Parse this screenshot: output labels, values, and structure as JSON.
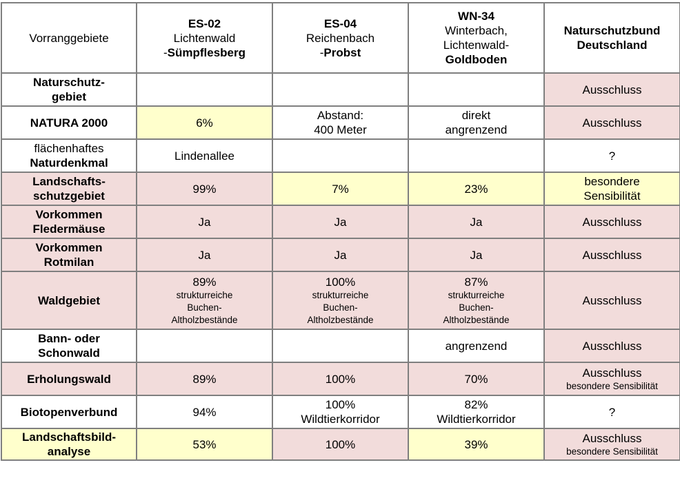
{
  "header": {
    "first": "Vorranggebiete",
    "es02": {
      "code": "ES-02",
      "line2": "Lichtenwald",
      "line3_prefix": "-",
      "line3_bold": "Sümpflesberg"
    },
    "es04": {
      "code": "ES-04",
      "line2": "Reichenbach",
      "line3_prefix": "-",
      "line3_bold": "Probst"
    },
    "wn34": {
      "code": "WN-34",
      "line2": "Winterbach,",
      "line3": "Lichtenwald-",
      "line4_bold": "Goldboden"
    },
    "nabu": {
      "line1": "Naturschutzbund",
      "line2": "Deutschland"
    }
  },
  "rows": {
    "naturschutzgebiet": {
      "label1": "Naturschutz-",
      "label2": "gebiet",
      "es02": "",
      "es04": "",
      "wn34": "",
      "nabu": "Ausschluss"
    },
    "natura2000": {
      "label": "NATURA 2000",
      "es02": "6%",
      "es04_1": "Abstand:",
      "es04_2": "400 Meter",
      "wn34_1": "direkt",
      "wn34_2": "angrenzend",
      "nabu": "Ausschluss"
    },
    "naturdenkmal": {
      "label1": "flächenhaftes",
      "label2": "Naturdenkmal",
      "es02": "Lindenallee",
      "es04": "",
      "wn34": "",
      "nabu": "?"
    },
    "landschaftsschutz": {
      "label1": "Landschafts-",
      "label2": "schutzgebiet",
      "es02": "99%",
      "es04": "7%",
      "wn34": "23%",
      "nabu1": "besondere",
      "nabu2": "Sensibilität"
    },
    "fledermaeuse": {
      "label1": "Vorkommen",
      "label2": "Fledermäuse",
      "es02": "Ja",
      "es04": "Ja",
      "wn34": "Ja",
      "nabu": "Ausschluss"
    },
    "rotmilan": {
      "label1": "Vorkommen",
      "label2": "Rotmilan",
      "es02": "Ja",
      "es04": "Ja",
      "wn34": "Ja",
      "nabu": "Ausschluss"
    },
    "waldgebiet": {
      "label": "Waldgebiet",
      "es02": {
        "pct": "89%",
        "d1": "strukturreiche",
        "d2": "Buchen-",
        "d3": "Altholzbestände"
      },
      "es04": {
        "pct": "100%",
        "d1": "strukturreiche",
        "d2": "Buchen-",
        "d3": "Altholzbestände"
      },
      "wn34": {
        "pct": "87%",
        "d1": "strukturreiche",
        "d2": "Buchen-",
        "d3": "Altholzbestände"
      },
      "nabu": "Ausschluss"
    },
    "bannwald": {
      "label1": "Bann- oder",
      "label2": "Schonwald",
      "es02": "",
      "es04": "",
      "wn34": "angrenzend",
      "nabu": "Ausschluss"
    },
    "erholungswald": {
      "label": "Erholungswald",
      "es02": "89%",
      "es04": "100%",
      "wn34": "70%",
      "nabu1": "Ausschluss",
      "nabu2": "besondere Sensibilität"
    },
    "biotopenverbund": {
      "label": "Biotopenverbund",
      "es02": "94%",
      "es04_1": "100%",
      "es04_2": "Wildtierkorridor",
      "wn34_1": "82%",
      "wn34_2": "Wildtierkorridor",
      "nabu": "?"
    },
    "landschaftsbild": {
      "label1": "Landschaftsbild-",
      "label2": "analyse",
      "es02": "53%",
      "es04": "100%",
      "wn34": "39%",
      "nabu1": "Ausschluss",
      "nabu2": "besondere Sensibilität"
    }
  },
  "colors": {
    "pink": "#f2dcdb",
    "yellow": "#ffffcc",
    "border": "#7f7f7f"
  }
}
